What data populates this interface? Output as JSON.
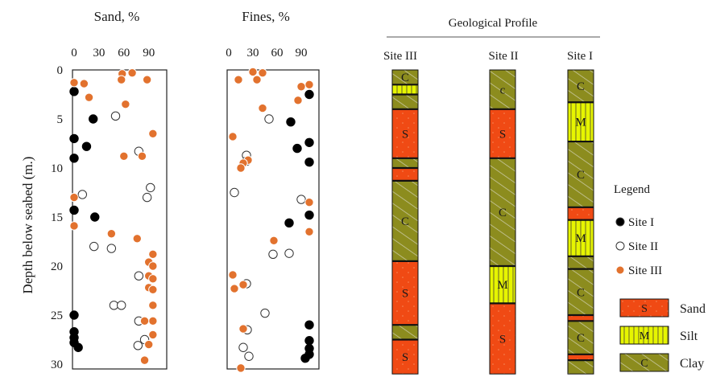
{
  "figure": {
    "ylabel": "Depth below seabed (m.)",
    "y_ticks": [
      "0",
      "5",
      "10",
      "15",
      "20",
      "25",
      "30"
    ],
    "x_ticks": [
      "0",
      "30",
      "60",
      "90"
    ],
    "profile_title": "Geological Profile",
    "legend_title": "Legend",
    "colors": {
      "site1": "#000000",
      "site2": "#ffffff",
      "site3": "#e2722e",
      "sand": "#f04a14",
      "silt": "#e6f500",
      "clay": "#8c8c1e"
    }
  },
  "chart_data": [
    {
      "type": "scatter",
      "title": "Sand, %",
      "xlim": [
        0,
        100
      ],
      "ylim": [
        0,
        30
      ],
      "y_inverted": true,
      "series": [
        {
          "name": "Site I",
          "points": [
            [
              0,
              2.2
            ],
            [
              23,
              5
            ],
            [
              0,
              7
            ],
            [
              15,
              7.8
            ],
            [
              0,
              9
            ],
            [
              0,
              14.3
            ],
            [
              25,
              15
            ],
            [
              0,
              25
            ],
            [
              0,
              26.7
            ],
            [
              0,
              27.3
            ],
            [
              0,
              27.8
            ],
            [
              5,
              28.3
            ]
          ]
        },
        {
          "name": "Site II",
          "points": [
            [
              50,
              4.7
            ],
            [
              78,
              8.3
            ],
            [
              92,
              12
            ],
            [
              88,
              13
            ],
            [
              10,
              12.7
            ],
            [
              24,
              18
            ],
            [
              45,
              18.2
            ],
            [
              78,
              21
            ],
            [
              48,
              24
            ],
            [
              57,
              24
            ],
            [
              78,
              25.6
            ],
            [
              85,
              27.5
            ],
            [
              77,
              28.1
            ]
          ]
        },
        {
          "name": "Site III",
          "points": [
            [
              70,
              0.3
            ],
            [
              58,
              0.4
            ],
            [
              57,
              1
            ],
            [
              88,
              1
            ],
            [
              0,
              1.3
            ],
            [
              12,
              1.4
            ],
            [
              18,
              2.8
            ],
            [
              62,
              3.5
            ],
            [
              95,
              6.5
            ],
            [
              60,
              8.8
            ],
            [
              82,
              8.8
            ],
            [
              0,
              13
            ],
            [
              0,
              15.9
            ],
            [
              45,
              16.7
            ],
            [
              76,
              17.2
            ],
            [
              95,
              18.8
            ],
            [
              90,
              19.6
            ],
            [
              95,
              20
            ],
            [
              90,
              21
            ],
            [
              95,
              21.3
            ],
            [
              90,
              22.2
            ],
            [
              95,
              22.4
            ],
            [
              95,
              24
            ],
            [
              95,
              25.6
            ],
            [
              85,
              25.6
            ],
            [
              95,
              27
            ],
            [
              90,
              28
            ],
            [
              85,
              29.6
            ]
          ]
        }
      ]
    },
    {
      "type": "scatter",
      "title": "Fines, %",
      "xlim": [
        0,
        100
      ],
      "ylim": [
        0,
        30
      ],
      "y_inverted": true,
      "series": [
        {
          "name": "Site I",
          "points": [
            [
              100,
              2.5
            ],
            [
              77,
              5.3
            ],
            [
              100,
              7.4
            ],
            [
              85,
              8
            ],
            [
              100,
              9.4
            ],
            [
              100,
              14.8
            ],
            [
              75,
              15.6
            ],
            [
              100,
              26
            ],
            [
              100,
              27.6
            ],
            [
              100,
              28.4
            ],
            [
              100,
              29
            ],
            [
              95,
              29.4
            ]
          ]
        },
        {
          "name": "Site II",
          "points": [
            [
              50,
              5
            ],
            [
              22,
              8.7
            ],
            [
              22,
              9.3
            ],
            [
              7,
              12.5
            ],
            [
              90,
              13.2
            ],
            [
              55,
              18.8
            ],
            [
              75,
              18.7
            ],
            [
              22,
              21.8
            ],
            [
              45,
              24.8
            ],
            [
              23,
              26.5
            ],
            [
              18,
              28.3
            ],
            [
              25,
              29.2
            ]
          ]
        },
        {
          "name": "Site III",
          "points": [
            [
              30,
              0.2
            ],
            [
              42,
              0.3
            ],
            [
              12,
              1
            ],
            [
              35,
              1
            ],
            [
              100,
              1.5
            ],
            [
              90,
              1.7
            ],
            [
              86,
              3.1
            ],
            [
              42,
              3.9
            ],
            [
              5,
              6.8
            ],
            [
              24,
              9.2
            ],
            [
              18,
              9.5
            ],
            [
              15,
              10
            ],
            [
              100,
              13.5
            ],
            [
              100,
              16.5
            ],
            [
              56,
              17.4
            ],
            [
              5,
              20.9
            ],
            [
              7,
              22.3
            ],
            [
              18,
              21.9
            ],
            [
              18,
              26.4
            ],
            [
              15,
              30.4
            ]
          ]
        }
      ]
    }
  ],
  "profile": {
    "depth_range": [
      0,
      30
    ],
    "columns": [
      {
        "label": "Site III",
        "layers": [
          {
            "from": 0,
            "to": 1.5,
            "soil": "clay",
            "label": "C"
          },
          {
            "from": 1.5,
            "to": 2.5,
            "soil": "silt",
            "label": ""
          },
          {
            "from": 2.5,
            "to": 4,
            "soil": "clay",
            "label": ""
          },
          {
            "from": 4,
            "to": 9,
            "soil": "sand",
            "label": "S"
          },
          {
            "from": 9,
            "to": 10,
            "soil": "clay",
            "label": ""
          },
          {
            "from": 10,
            "to": 11.3,
            "soil": "sand",
            "label": ""
          },
          {
            "from": 11.3,
            "to": 19.5,
            "soil": "clay",
            "label": "C"
          },
          {
            "from": 19.5,
            "to": 26,
            "soil": "sand",
            "label": "S"
          },
          {
            "from": 26,
            "to": 27.5,
            "soil": "clay",
            "label": ""
          },
          {
            "from": 27.5,
            "to": 31,
            "soil": "sand",
            "label": "S"
          }
        ]
      },
      {
        "label": "Site II",
        "layers": [
          {
            "from": 0,
            "to": 4,
            "soil": "clay",
            "label": "c"
          },
          {
            "from": 4,
            "to": 9,
            "soil": "sand",
            "label": "S"
          },
          {
            "from": 9,
            "to": 20,
            "soil": "clay",
            "label": "C"
          },
          {
            "from": 20,
            "to": 23.8,
            "soil": "silt",
            "label": "M"
          },
          {
            "from": 23.8,
            "to": 31,
            "soil": "sand",
            "label": "S"
          }
        ]
      },
      {
        "label": "Site I",
        "layers": [
          {
            "from": 0,
            "to": 3.3,
            "soil": "clay",
            "label": "C"
          },
          {
            "from": 3.3,
            "to": 7.3,
            "soil": "silt",
            "label": "M"
          },
          {
            "from": 7.3,
            "to": 14,
            "soil": "clay",
            "label": "C"
          },
          {
            "from": 14,
            "to": 15.3,
            "soil": "sand",
            "label": ""
          },
          {
            "from": 15.3,
            "to": 19,
            "soil": "silt",
            "label": "M"
          },
          {
            "from": 19,
            "to": 20.3,
            "soil": "clay",
            "label": ""
          },
          {
            "from": 20.3,
            "to": 25,
            "soil": "clay",
            "label": "C"
          },
          {
            "from": 25,
            "to": 25.6,
            "soil": "sand",
            "label": ""
          },
          {
            "from": 25.6,
            "to": 29,
            "soil": "clay",
            "label": "C"
          },
          {
            "from": 29,
            "to": 29.6,
            "soil": "sand",
            "label": ""
          },
          {
            "from": 29.6,
            "to": 31,
            "soil": "clay",
            "label": ""
          }
        ]
      }
    ]
  },
  "legend": {
    "markers": [
      {
        "label": "Site I",
        "series": "site1"
      },
      {
        "label": "Site II",
        "series": "site2"
      },
      {
        "label": "Site III",
        "series": "site3"
      }
    ],
    "soils": [
      {
        "label": "Sand",
        "code": "S",
        "soil": "sand"
      },
      {
        "label": "Silt",
        "code": "M",
        "soil": "silt"
      },
      {
        "label": "Clay",
        "code": "C",
        "soil": "clay"
      }
    ]
  }
}
